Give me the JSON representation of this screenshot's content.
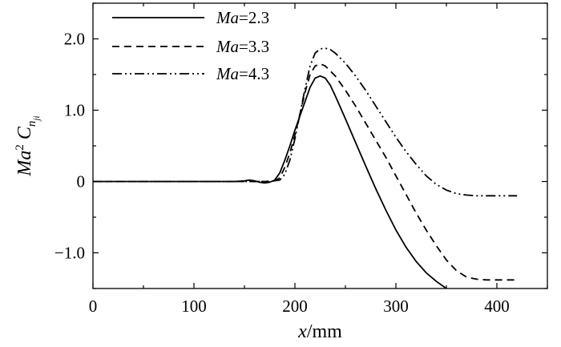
{
  "chart_data": {
    "type": "line",
    "title": "",
    "xlabel": {
      "var": "x",
      "unit": "/mm"
    },
    "ylabel": {
      "main": "Ma",
      "sup": "2",
      "c": "C",
      "sub": "n",
      "subsub": "ji"
    },
    "xlim": [
      0,
      450
    ],
    "ylim": [
      -1.5,
      2.5
    ],
    "xticks": [
      0,
      100,
      200,
      300,
      400
    ],
    "yticks": [
      -1.0,
      0,
      1.0,
      2.0
    ],
    "xtick_labels": [
      "0",
      "100",
      "200",
      "300",
      "400"
    ],
    "ytick_labels": [
      "−1.0",
      "0",
      "1.0",
      "2.0"
    ],
    "grid": false,
    "legend_position": "top-left",
    "series": [
      {
        "name": "Ma=2.3",
        "name_var": "Ma",
        "name_value": "=2.3",
        "dash": "solid",
        "x": [
          0,
          140,
          150,
          155,
          160,
          165,
          170,
          175,
          180,
          185,
          190,
          195,
          200,
          205,
          210,
          215,
          220,
          225,
          230,
          235,
          240,
          250,
          260,
          270,
          280,
          290,
          300,
          310,
          320,
          330,
          340,
          350
        ],
        "y": [
          0,
          0,
          0.01,
          0.02,
          0.01,
          -0.01,
          -0.02,
          -0.01,
          0.02,
          0.12,
          0.3,
          0.5,
          0.72,
          0.92,
          1.12,
          1.32,
          1.45,
          1.48,
          1.45,
          1.35,
          1.2,
          0.88,
          0.55,
          0.22,
          -0.1,
          -0.4,
          -0.68,
          -0.92,
          -1.12,
          -1.28,
          -1.4,
          -1.5
        ]
      },
      {
        "name": "Ma=3.3",
        "name_var": "Ma",
        "name_value": "=3.3",
        "dash": "dashed",
        "x": [
          0,
          170,
          180,
          185,
          190,
          195,
          200,
          205,
          210,
          215,
          220,
          225,
          230,
          240,
          250,
          260,
          270,
          280,
          290,
          300,
          310,
          320,
          330,
          340,
          350,
          360,
          370,
          380,
          390,
          400,
          410,
          420
        ],
        "y": [
          0,
          0,
          0.01,
          0.05,
          0.2,
          0.4,
          0.65,
          0.95,
          1.25,
          1.5,
          1.62,
          1.65,
          1.62,
          1.48,
          1.28,
          1.06,
          0.82,
          0.58,
          0.34,
          0.08,
          -0.18,
          -0.44,
          -0.68,
          -0.9,
          -1.1,
          -1.25,
          -1.34,
          -1.37,
          -1.38,
          -1.38,
          -1.38,
          -1.38
        ]
      },
      {
        "name": "Ma=4.3",
        "name_var": "Ma",
        "name_value": "=4.3",
        "dash": "dash-dot-dot",
        "x": [
          0,
          175,
          185,
          190,
          195,
          200,
          205,
          210,
          215,
          220,
          225,
          230,
          235,
          240,
          250,
          260,
          270,
          280,
          290,
          300,
          310,
          320,
          330,
          340,
          350,
          360,
          370,
          380,
          390,
          400,
          410,
          420
        ],
        "y": [
          0,
          0,
          0.02,
          0.1,
          0.3,
          0.6,
          0.95,
          1.3,
          1.62,
          1.8,
          1.86,
          1.87,
          1.85,
          1.8,
          1.66,
          1.48,
          1.28,
          1.06,
          0.84,
          0.62,
          0.42,
          0.24,
          0.08,
          -0.04,
          -0.12,
          -0.17,
          -0.19,
          -0.2,
          -0.2,
          -0.2,
          -0.2,
          -0.2
        ]
      }
    ]
  }
}
